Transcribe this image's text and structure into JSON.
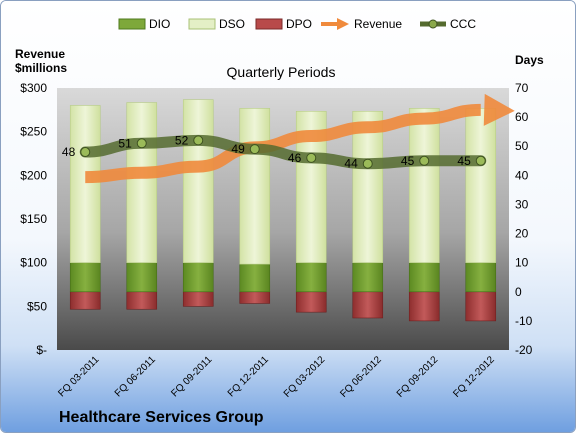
{
  "chart_data": {
    "type": "bar",
    "company": "Healthcare Services Group",
    "title": "Quarterly Periods",
    "ylabel_left": "Revenue $millions",
    "ylabel_right": "Days",
    "categories": [
      "FQ 03-2011",
      "FQ 06-2011",
      "FQ 09-2011",
      "FQ 12-2011",
      "FQ 03-2012",
      "FQ 06-2012",
      "FQ 09-2012",
      "FQ 12-2012"
    ],
    "left_axis": {
      "range": [
        0,
        300
      ],
      "ticks": [
        "$-",
        "$50",
        "$100",
        "$150",
        "$200",
        "$250",
        "$300"
      ]
    },
    "right_axis": {
      "range": [
        -20,
        70
      ],
      "ticks": [
        "-20",
        "-10",
        "0",
        "10",
        "20",
        "30",
        "40",
        "50",
        "60",
        "70"
      ]
    },
    "series": [
      {
        "name": "DIO",
        "color": "#6e9a2e",
        "values": [
          10,
          10,
          10,
          9.5,
          10,
          10,
          10,
          10
        ]
      },
      {
        "name": "DSO",
        "color": "#e4efc6",
        "values": [
          54,
          55,
          56,
          53.5,
          52,
          52,
          53,
          53
        ]
      },
      {
        "name": "DPO",
        "color": "#a94040",
        "values": [
          -6,
          -6,
          -5,
          -4,
          -7,
          -9,
          -10,
          -10
        ]
      },
      {
        "name": "Revenue",
        "color": "#f08a3c",
        "axis": "left",
        "values": [
          198,
          203,
          210,
          232,
          245,
          255,
          265,
          275
        ]
      },
      {
        "name": "CCC",
        "color": "#556b2f",
        "values": [
          48,
          51,
          52,
          49,
          46,
          44,
          45,
          45
        ]
      }
    ],
    "grid": false,
    "legend_position": "top"
  }
}
